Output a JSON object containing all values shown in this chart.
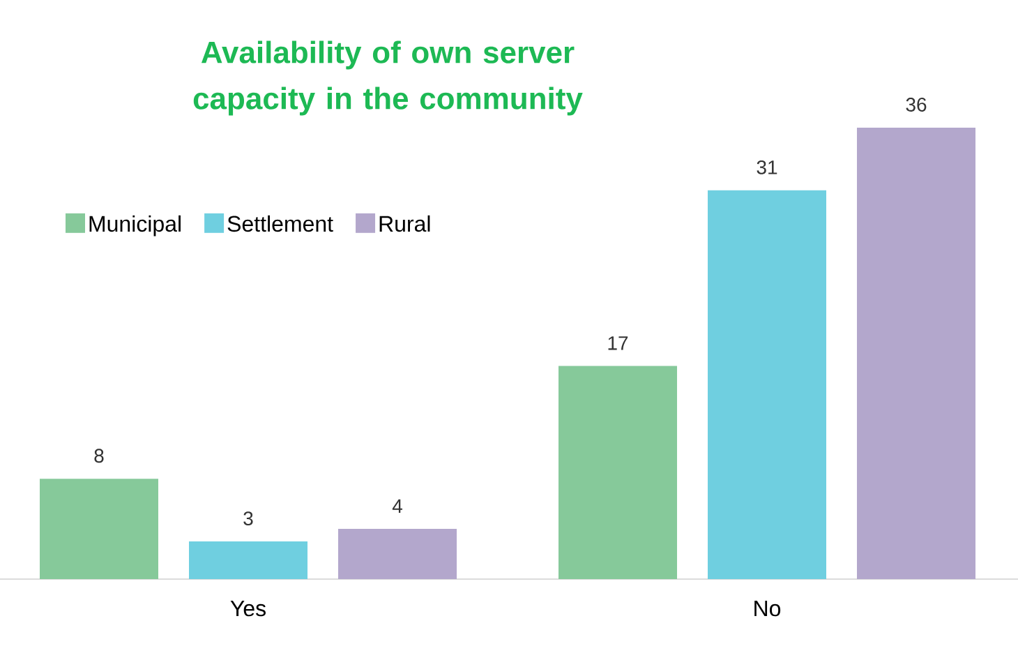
{
  "chart_data": {
    "type": "bar",
    "title": "Availability of own server capacity in the community",
    "categories": [
      "Yes",
      "No"
    ],
    "series": [
      {
        "name": "Municipal",
        "color": "#86c99a",
        "values": [
          8,
          17
        ]
      },
      {
        "name": "Settlement",
        "color": "#6fcfe0",
        "values": [
          3,
          31
        ]
      },
      {
        "name": "Rural",
        "color": "#b3a7cc",
        "values": [
          4,
          36
        ]
      }
    ],
    "data_labels": true,
    "legend": "top left",
    "tick_labels": "x"
  }
}
